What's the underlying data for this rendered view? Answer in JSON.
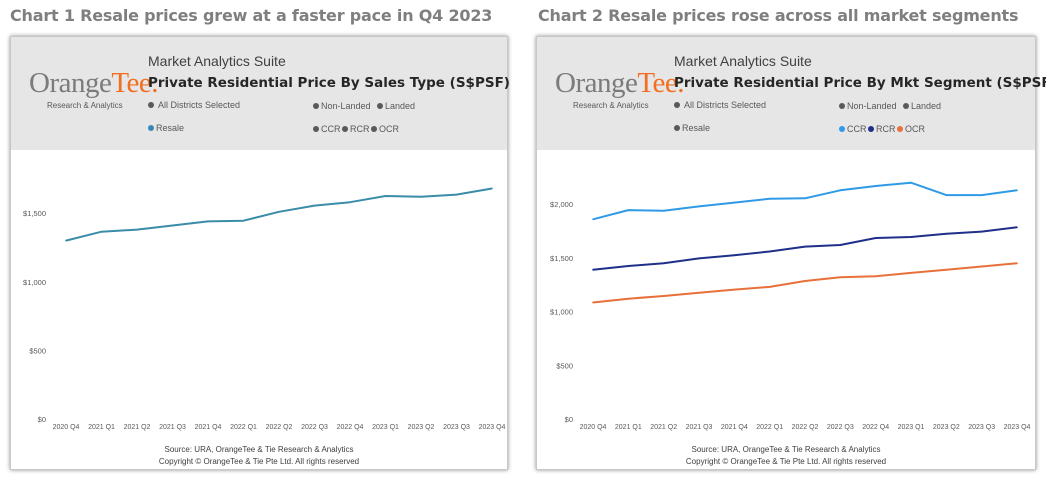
{
  "headings": [
    "Chart 1 Resale prices grew at a faster pace in Q4 2023",
    "Chart 2 Resale prices rose across all market segments"
  ],
  "panels": [
    {
      "suite": "Market Analytics Suite",
      "logo": {
        "brand_part1": "Orange",
        "brand_part2": "Tee.",
        "sub": "Research & Analytics"
      },
      "title": "Private Residential Price By Sales Type (S$PSF)",
      "legend": {
        "districts": "All Districts Selected",
        "non_landed": "Non-Landed",
        "landed": "Landed",
        "resale": "Resale",
        "ccr": "CCR",
        "rcr": "RCR",
        "ocr": "OCR"
      },
      "source": "Source: URA, OrangeTee & Tie Research & Analytics",
      "copyright": "Copyright © OrangeTee & Tie Pte Ltd. All rights reserved"
    },
    {
      "suite": "Market Analytics Suite",
      "logo": {
        "brand_part1": "Orange",
        "brand_part2": "Tee.",
        "sub": "Research & Analytics"
      },
      "title": "Private Residential Price By Mkt Segment (S$PSF)",
      "legend": {
        "districts": "All Districts Selected",
        "non_landed": "Non-Landed",
        "landed": "Landed",
        "resale": "Resale",
        "ccr": "CCR",
        "rcr": "RCR",
        "ocr": "OCR"
      },
      "source": "Source: URA, OrangeTee & Tie Research & Analytics",
      "copyright": "Copyright © OrangeTee & Tie Pte Ltd. All rights reserved"
    }
  ],
  "colors": {
    "heading": "#7f7f7f",
    "header_bg": "#e6e6e6",
    "legend_grey": "#595959",
    "resale": "#3a86b8",
    "resale_line": "#3a8ca8",
    "ccr": "#2f9ae6",
    "rcr": "#1f2f8a",
    "ocr": "#e8703a",
    "brand_orange": "#f26f21"
  },
  "chart_data": [
    {
      "type": "line",
      "title": "Private Residential Price By Sales Type (S$PSF)",
      "categories": [
        "2020 Q4",
        "2021 Q1",
        "2021 Q2",
        "2021 Q3",
        "2021 Q4",
        "2022 Q1",
        "2022 Q2",
        "2022 Q3",
        "2022 Q4",
        "2023 Q1",
        "2023 Q2",
        "2023 Q3",
        "2023 Q4"
      ],
      "ylim": [
        0,
        1800
      ],
      "yticks": [
        0,
        500,
        1000,
        1500
      ],
      "ytick_labels": [
        "$0",
        "$500",
        "$1,000",
        "$1,500"
      ],
      "series": [
        {
          "name": "Resale",
          "values": [
            1300,
            1365,
            1380,
            1410,
            1440,
            1445,
            1510,
            1555,
            1580,
            1625,
            1620,
            1635,
            1680
          ]
        }
      ]
    },
    {
      "type": "line",
      "title": "Private Residential Price By Mkt Segment (S$PSF)",
      "categories": [
        "2020 Q4",
        "2021 Q1",
        "2021 Q2",
        "2021 Q3",
        "2021 Q4",
        "2022 Q1",
        "2022 Q2",
        "2022 Q3",
        "2022 Q4",
        "2023 Q1",
        "2023 Q2",
        "2023 Q3",
        "2023 Q4"
      ],
      "ylim": [
        0,
        2300
      ],
      "yticks": [
        0,
        500,
        1000,
        1500,
        2000
      ],
      "ytick_labels": [
        "$0",
        "$500",
        "$1,000",
        "$1,500",
        "$2,000"
      ],
      "series": [
        {
          "name": "CCR",
          "values": [
            1860,
            1945,
            1940,
            1980,
            2015,
            2050,
            2055,
            2130,
            2170,
            2200,
            2085,
            2085,
            2130
          ]
        },
        {
          "name": "RCR",
          "values": [
            1390,
            1425,
            1450,
            1495,
            1525,
            1560,
            1605,
            1620,
            1685,
            1695,
            1725,
            1745,
            1785
          ]
        },
        {
          "name": "OCR",
          "values": [
            1085,
            1120,
            1145,
            1175,
            1205,
            1230,
            1285,
            1320,
            1330,
            1360,
            1390,
            1420,
            1450
          ]
        }
      ]
    }
  ]
}
